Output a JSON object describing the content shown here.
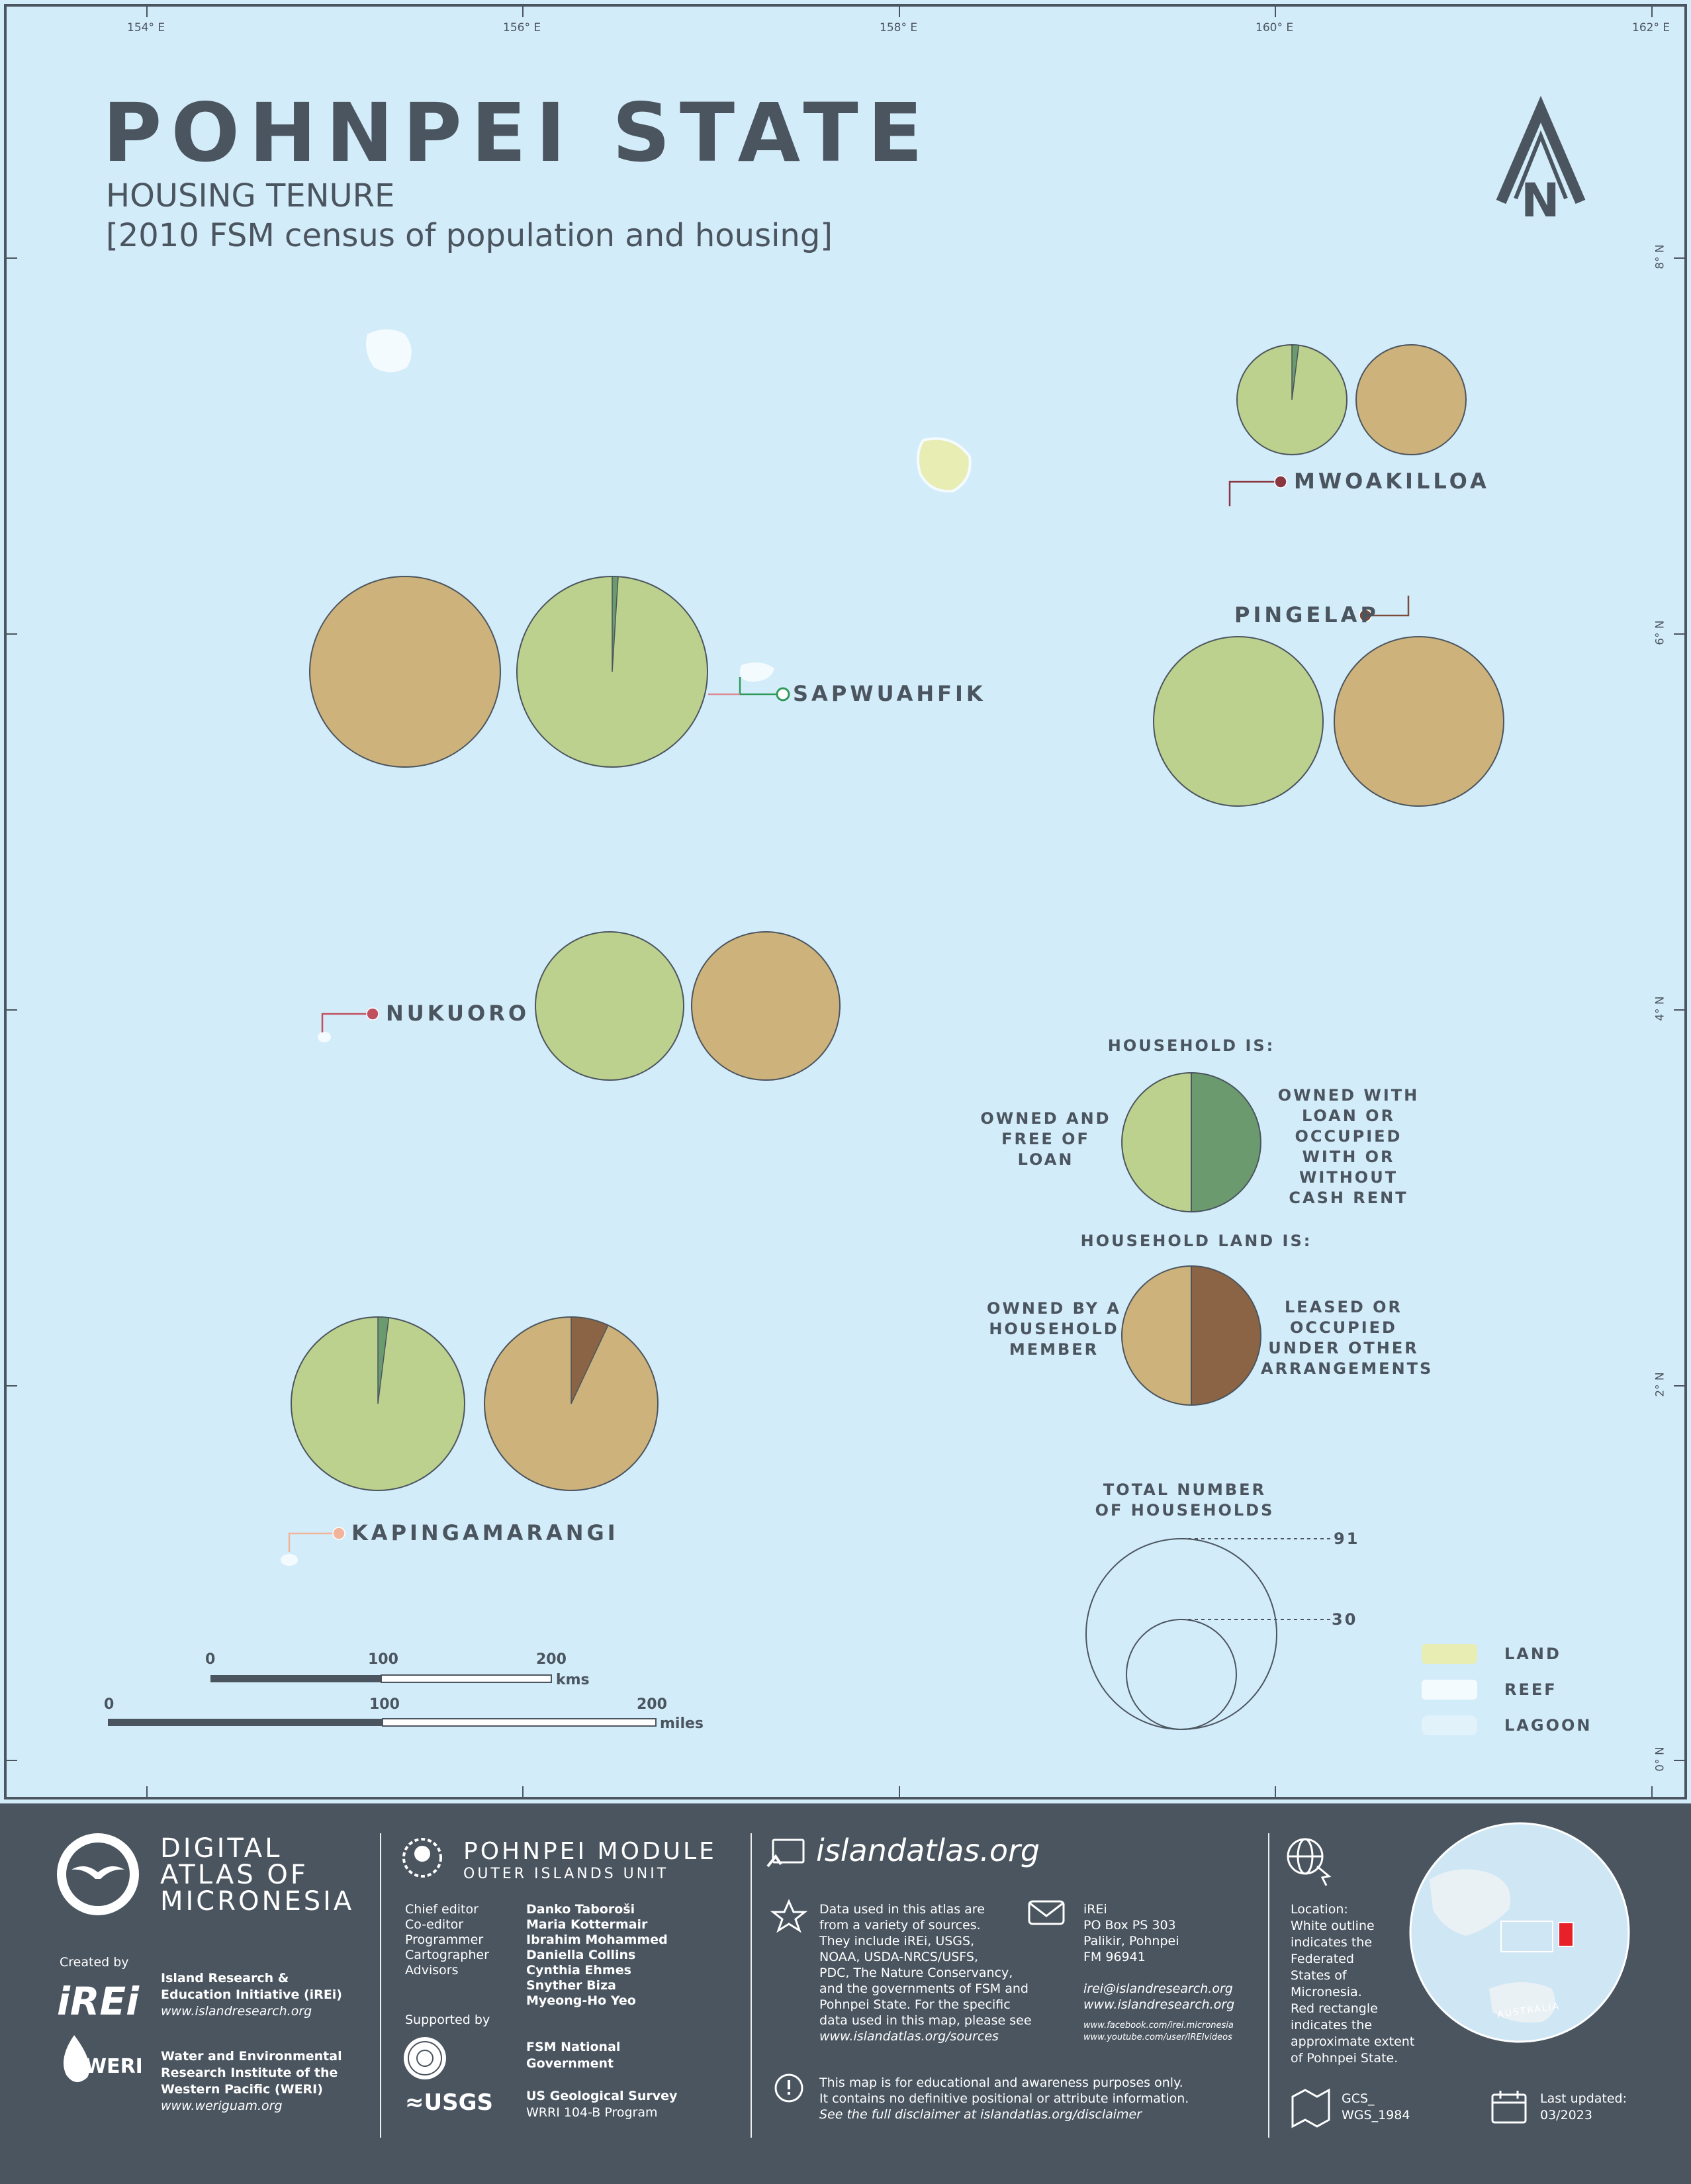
{
  "title": "POHNPEI STATE",
  "subtitle": "HOUSING TENURE",
  "subtitle2": "[2010 FSM census of population and housing]",
  "north_label": "N",
  "lon_ticks": [
    "154° E",
    "156° E",
    "158° E",
    "160° E",
    "162° E"
  ],
  "lat_ticks": [
    "8° N",
    "6° N",
    "4° N",
    "2° N",
    "0° N"
  ],
  "islands": [
    {
      "name": "MWOAKILLOA",
      "tenure_owned_free_pct": 98,
      "land_household_member_pct": 100,
      "marker_color": "#8a3742"
    },
    {
      "name": "PINGELAP",
      "tenure_owned_free_pct": 100,
      "land_household_member_pct": 100,
      "marker_color": "#7a4a3c"
    },
    {
      "name": "SAPWUAHFIK",
      "tenure_owned_free_pct": 99,
      "land_household_member_pct": 100,
      "marker_color": "#2f9a5a"
    },
    {
      "name": "NUKUORO",
      "tenure_owned_free_pct": 100,
      "land_household_member_pct": 100,
      "marker_color": "#c0505e"
    },
    {
      "name": "KAPINGAMARANGI",
      "tenure_owned_free_pct": 98,
      "land_household_member_pct": 93,
      "marker_color": "#f2b49a"
    }
  ],
  "colors": {
    "owned_free": "#bcd18e",
    "owned_loan": "#6a9a6e",
    "land_member": "#cdb27b",
    "land_leased": "#8a6444",
    "ocean": "#d3ecf9",
    "land": "#e8edb4",
    "reef": "#f4fbff",
    "footer": "#4a5560"
  },
  "legend": {
    "household_heading": "HOUSEHOLD IS:",
    "owned_free": "OWNED AND FREE OF LOAN",
    "owned_loan": "OWNED WITH LOAN OR OCCUPIED WITH OR WITHOUT CASH RENT",
    "land_heading": "HOUSEHOLD LAND IS:",
    "land_member": "OWNED BY A HOUSEHOLD MEMBER",
    "land_leased": "LEASED OR OCCUPIED UNDER OTHER ARRANGEMENTS",
    "total_heading": "TOTAL NUMBER OF HOUSEHOLDS",
    "total_large": "91",
    "total_small": "30",
    "land": "LAND",
    "reef": "REEF",
    "lagoon": "LAGOON"
  },
  "scale_km": {
    "zero": "0",
    "mid": "100",
    "end": "200",
    "unit": "kms"
  },
  "scale_mi": {
    "zero": "0",
    "mid": "100",
    "end": "200",
    "unit": "miles"
  },
  "footer": {
    "atlas": [
      "DIGITAL",
      "ATLAS OF",
      "MICRONESIA"
    ],
    "created_by": "Created by",
    "irei_logo": "iREi",
    "irei_name": [
      "Island Research &",
      "Education Initiative (iREi)"
    ],
    "irei_url": "www.islandresearch.org",
    "weri_logo": "WERI",
    "weri_name": [
      "Water and Environmental",
      "Research Institute of the",
      "Western Pacific (WERI)"
    ],
    "weri_url": "www.weriguam.org",
    "module_title": "POHNPEI MODULE",
    "module_sub": "OUTER ISLANDS UNIT",
    "roles": [
      "Chief editor",
      "Co-editor",
      "Programmer",
      "Cartographer",
      "Advisors"
    ],
    "names": [
      "Danko Taboroši",
      "Maria Kottermair",
      "Ibrahim Mohammed",
      "Daniella Collins",
      "Cynthia Ehmes",
      "Snyther Biza",
      "Myeong-Ho Yeo"
    ],
    "supported_by": "Supported by",
    "fsm": [
      "FSM National",
      "Government"
    ],
    "usgs_logo": "≈USGS",
    "usgs": "US Geological Survey",
    "usgs_program": "WRRI 104-B Program",
    "site": "islandatlas.org",
    "sources": [
      "Data used in this atlas are",
      "from a variety of sources.",
      "They include iREi, USGS,",
      "NOAA, USDA-NRCS/USFS,",
      "PDC, The Nature Conservancy,",
      "and the governments of FSM and",
      "Pohnpei State. For the specific",
      "data used in this map, please see",
      "www.islandatlas.org/sources"
    ],
    "contact": [
      "iREi",
      "PO Box PS 303",
      "Palikir, Pohnpei",
      "FM 96941"
    ],
    "email": "irei@islandresearch.org",
    "web": "www.islandresearch.org",
    "facebook": "www.facebook.com/irei.micronesia",
    "youtube": "www.youtube.com/user/IREIvideos",
    "disclaimer": [
      "This map is for educational and awareness purposes only.",
      "It contains no definitive positional or attribute information.",
      "See the full disclaimer at islandatlas.org/disclaimer"
    ],
    "location": [
      "Location:",
      "White outline",
      "indicates the",
      "Federated",
      "States of",
      "Micronesia.",
      "Red rectangle",
      "indicates the",
      "approximate extent",
      "of Pohnpei State."
    ],
    "globe_label": "AUSTRALIA",
    "projection": [
      "GCS_",
      "WGS_1984"
    ],
    "updated": [
      "Last updated:",
      "03/2023"
    ]
  }
}
